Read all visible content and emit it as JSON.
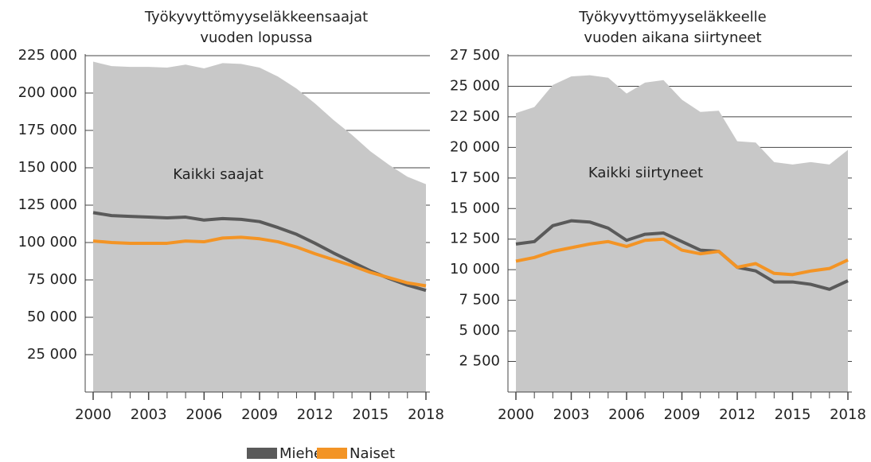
{
  "chart_data": [
    {
      "type": "line",
      "title": [
        "Työkyvyttömyyseläkkeensaajat",
        "vuoden lopussa"
      ],
      "x": [
        2000,
        2001,
        2002,
        2003,
        2004,
        2005,
        2006,
        2007,
        2008,
        2009,
        2010,
        2011,
        2012,
        2013,
        2014,
        2015,
        2016,
        2017,
        2018
      ],
      "xlim": [
        2000,
        2018
      ],
      "xticks": [
        2000,
        2003,
        2006,
        2009,
        2012,
        2015,
        2018
      ],
      "ylim": [
        0,
        225000
      ],
      "yticks": [
        {
          "value": 25000,
          "label": "25 000"
        },
        {
          "value": 50000,
          "label": "50 000"
        },
        {
          "value": 75000,
          "label": "75 000"
        },
        {
          "value": 100000,
          "label": "100 000"
        },
        {
          "value": 125000,
          "label": "125 000"
        },
        {
          "value": 150000,
          "label": "150 000"
        },
        {
          "value": 175000,
          "label": "175 000"
        },
        {
          "value": 200000,
          "label": "200 000"
        },
        {
          "value": 225000,
          "label": "225 000"
        }
      ],
      "grid": true,
      "area": {
        "label": "Kaikki saajat",
        "color": "#c8c8c8",
        "values": [
          221000,
          218000,
          217500,
          217500,
          217000,
          219000,
          216500,
          220000,
          219500,
          217000,
          211000,
          203000,
          193000,
          182000,
          172000,
          161000,
          152000,
          144000,
          139000
        ]
      },
      "series": [
        {
          "name": "Miehet",
          "color": "#5a5a5a",
          "values": [
            120000,
            118000,
            117500,
            117000,
            116500,
            117000,
            115000,
            116000,
            115500,
            114000,
            110000,
            105500,
            99500,
            93000,
            87000,
            81000,
            76000,
            71500,
            68000
          ]
        },
        {
          "name": "Naiset",
          "color": "#f39425",
          "values": [
            101000,
            100000,
            99500,
            99500,
            99500,
            101000,
            100500,
            103000,
            103500,
            102500,
            100500,
            97000,
            92500,
            88500,
            84500,
            80000,
            76500,
            73000,
            71000
          ]
        }
      ]
    },
    {
      "type": "line",
      "title": [
        "Työkyvyttömyyseläkkeelle",
        "vuoden aikana siirtyneet"
      ],
      "x": [
        2000,
        2001,
        2002,
        2003,
        2004,
        2005,
        2006,
        2007,
        2008,
        2009,
        2010,
        2011,
        2012,
        2013,
        2014,
        2015,
        2016,
        2017,
        2018
      ],
      "xlim": [
        2000,
        2018
      ],
      "xticks": [
        2000,
        2003,
        2006,
        2009,
        2012,
        2015,
        2018
      ],
      "ylim": [
        0,
        27500
      ],
      "yticks": [
        {
          "value": 2500,
          "label": "2 500"
        },
        {
          "value": 5000,
          "label": "5 000"
        },
        {
          "value": 7500,
          "label": "7 500"
        },
        {
          "value": 10000,
          "label": "10 000"
        },
        {
          "value": 12500,
          "label": "12 500"
        },
        {
          "value": 15000,
          "label": "15 000"
        },
        {
          "value": 17500,
          "label": "17 500"
        },
        {
          "value": 20000,
          "label": "20 000"
        },
        {
          "value": 22500,
          "label": "22 500"
        },
        {
          "value": 25000,
          "label": "25 000"
        },
        {
          "value": 27500,
          "label": "27 500"
        }
      ],
      "grid": true,
      "area": {
        "label": "Kaikki siirtyneet",
        "color": "#c8c8c8",
        "values": [
          22800,
          23300,
          25100,
          25800,
          25900,
          25700,
          24400,
          25300,
          25500,
          23900,
          22900,
          23000,
          20500,
          20400,
          18800,
          18600,
          18800,
          18600,
          19800
        ]
      },
      "series": [
        {
          "name": "Miehet",
          "color": "#5a5a5a",
          "values": [
            12100,
            12300,
            13600,
            14000,
            13900,
            13400,
            12400,
            12900,
            13000,
            12300,
            11600,
            11500,
            10200,
            9900,
            9000,
            9000,
            8800,
            8400,
            9100
          ]
        },
        {
          "name": "Naiset",
          "color": "#f39425",
          "values": [
            10700,
            11000,
            11500,
            11800,
            12100,
            12300,
            11900,
            12400,
            12500,
            11600,
            11300,
            11500,
            10200,
            10500,
            9700,
            9600,
            9900,
            10100,
            10800
          ]
        }
      ]
    }
  ]
}
